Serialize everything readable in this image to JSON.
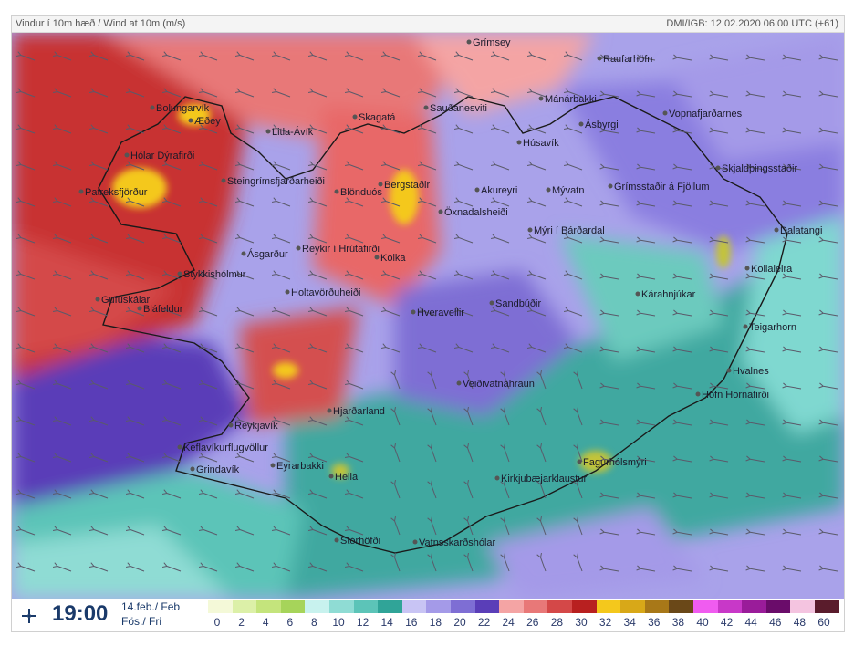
{
  "header": {
    "title": "Vindur í 10m hæð / Wind at 10m (m/s)",
    "source": "DMI/IGB: 12.02.2020 06:00 UTC (+61)"
  },
  "footer": {
    "time": "19:00",
    "date_line1": "14.feb./ Feb",
    "date_line2": "Fös./ Fri"
  },
  "legend": {
    "labels": [
      "0",
      "2",
      "4",
      "6",
      "8",
      "10",
      "12",
      "14",
      "16",
      "18",
      "20",
      "22",
      "24",
      "26",
      "28",
      "30",
      "32",
      "34",
      "36",
      "38",
      "40",
      "42",
      "44",
      "46",
      "48",
      "60"
    ],
    "colors": [
      "#f4f9d8",
      "#dcf0a8",
      "#c4e47c",
      "#a6d45a",
      "#c8f2ee",
      "#8fdcd4",
      "#5cc4b8",
      "#30a498",
      "#c8c4f4",
      "#a49ae8",
      "#7e6ed4",
      "#5a3eb8",
      "#f4a4a4",
      "#e87878",
      "#d44848",
      "#b82020",
      "#f4c81c",
      "#d8a818",
      "#a87818",
      "#6a4818",
      "#f05cf0",
      "#c838c8",
      "#9a1c9a",
      "#6a0c6a",
      "#f4c4e0",
      "#5a1c2c"
    ]
  },
  "places": [
    {
      "name": "Grímsey"
    },
    {
      "name": "Raufarhöfn"
    },
    {
      "name": "Bolungarvík"
    },
    {
      "name": "Æðey"
    },
    {
      "name": "Litla-Ávík"
    },
    {
      "name": "Skagatá"
    },
    {
      "name": "Sauðanesviti"
    },
    {
      "name": "Mánárbakki"
    },
    {
      "name": "Ásbyrgi"
    },
    {
      "name": "Vopnafjarðarnes"
    },
    {
      "name": "Hólar Dýrafirði"
    },
    {
      "name": "Húsavík"
    },
    {
      "name": "Skjaldþingsstaðir"
    },
    {
      "name": "Steingrímsfjarðarheiði"
    },
    {
      "name": "Blönduós"
    },
    {
      "name": "Bergstaðir"
    },
    {
      "name": "Akureyri"
    },
    {
      "name": "Mývatn"
    },
    {
      "name": "Grímsstaðir á Fjöllum"
    },
    {
      "name": "Patreksfjörður"
    },
    {
      "name": "Öxnadalsheiði"
    },
    {
      "name": "Mýri í Bárðardal"
    },
    {
      "name": "Dalatangi"
    },
    {
      "name": "Ásgarður"
    },
    {
      "name": "Reykir í Hrútafirði"
    },
    {
      "name": "Kolka"
    },
    {
      "name": "Kollaleira"
    },
    {
      "name": "Stykkishólmur"
    },
    {
      "name": "Holtavörðuheiði"
    },
    {
      "name": "Gufuskálar"
    },
    {
      "name": "Bláfeldur"
    },
    {
      "name": "Sandbúðir"
    },
    {
      "name": "Kárahnjúkar"
    },
    {
      "name": "Hveravellir"
    },
    {
      "name": "Teigarhorn"
    },
    {
      "name": "Hvalnes"
    },
    {
      "name": "Veiðivatnahraun"
    },
    {
      "name": "Höfn Hornafirði"
    },
    {
      "name": "Hjarðarland"
    },
    {
      "name": "Reykjavík"
    },
    {
      "name": "Keflavíkurflugvöllur"
    },
    {
      "name": "Fagurhólsmýri"
    },
    {
      "name": "Grindavík"
    },
    {
      "name": "Eyrarbakki"
    },
    {
      "name": "Hella"
    },
    {
      "name": "Kirkjubæjarklaustur"
    },
    {
      "name": "Stórhöfði"
    },
    {
      "name": "Vatnsskarðshólar"
    }
  ]
}
